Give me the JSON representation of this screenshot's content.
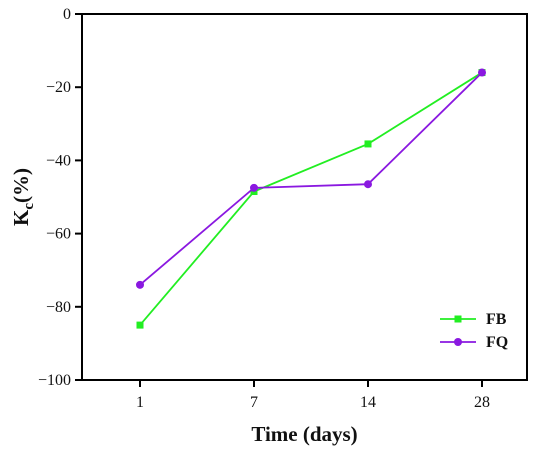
{
  "chart_data": {
    "type": "line",
    "categories": [
      "1",
      "7",
      "14",
      "28"
    ],
    "xlabel": "Time (days)",
    "ylabel_main": "K",
    "ylabel_sub": "c",
    "ylabel_rest": "(%)",
    "ylim": [
      -100,
      0
    ],
    "yticks": [
      0,
      -20,
      -40,
      -60,
      -80,
      -100
    ],
    "grid": false,
    "legend_position": "bottom-right",
    "series": [
      {
        "name": "FB",
        "marker": "square",
        "color": "#22ee22",
        "values": [
          -85,
          -48.5,
          -35.5,
          -16
        ]
      },
      {
        "name": "FQ",
        "marker": "circle",
        "color": "#8a18e0",
        "values": [
          -74,
          -47.5,
          -46.5,
          -16
        ]
      }
    ]
  }
}
